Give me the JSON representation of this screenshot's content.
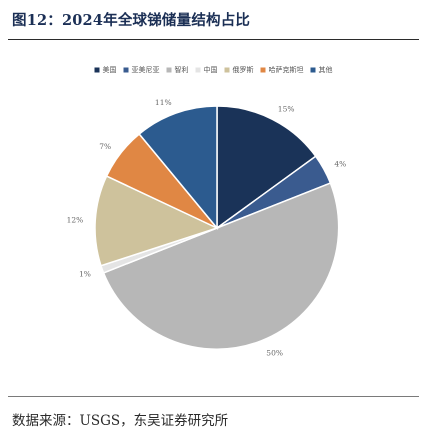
{
  "header": {
    "title": "图12：2024年全球锑储量结构占比"
  },
  "footer": {
    "source": "数据来源：USGS，东吴证券研究所"
  },
  "chart_data": {
    "type": "pie",
    "title": "图12：2024年全球锑储量结构占比",
    "legend_position": "top",
    "slices": [
      {
        "name": "美国",
        "value": 15,
        "label": "15%",
        "color": "#1a3358"
      },
      {
        "name": "亚美尼亚",
        "value": 4,
        "label": "4%",
        "color": "#3a5b8f"
      },
      {
        "name": "智利",
        "value": 50,
        "label": "50%",
        "color": "#b7b7b7"
      },
      {
        "name": "中国",
        "value": 1,
        "label": "1%",
        "color": "#e4e4e4"
      },
      {
        "name": "俄罗斯",
        "value": 12,
        "label": "12%",
        "color": "#cec29c"
      },
      {
        "name": "哈萨克斯坦",
        "value": 7,
        "label": "7%",
        "color": "#e08744"
      },
      {
        "name": "其他",
        "value": 11,
        "label": "11%",
        "color": "#2c5b8f"
      }
    ]
  }
}
